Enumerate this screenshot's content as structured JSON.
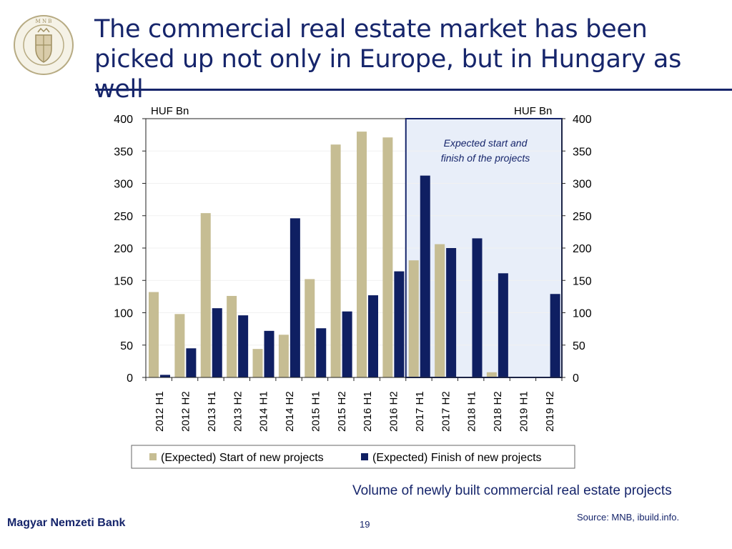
{
  "slide": {
    "title": "The commercial real estate market has been picked up not only in Europe, but in Hungary as well",
    "caption": "Volume of newly built commercial real estate projects",
    "source": "Source: MNB, ibuild.info.",
    "footer_bank": "Magyar Nemzeti Bank",
    "page_number": "19",
    "logo_text": "MAGYAR NEMZETI BANK"
  },
  "colors": {
    "navy": "#16256b",
    "start_bar": "#c6bd93",
    "finish_bar": "#0f1f62",
    "expected_band": "#e8eef9",
    "axis": "#222222"
  },
  "chart_data": {
    "type": "bar",
    "categories": [
      "2012 H1",
      "2012 H2",
      "2013 H1",
      "2013 H2",
      "2014 H1",
      "2014 H2",
      "2015 H1",
      "2015 H2",
      "2016 H1",
      "2016 H2",
      "2017 H1",
      "2017 H2",
      "2018 H1",
      "2018 H2",
      "2019 H1",
      "2019 H2"
    ],
    "series": [
      {
        "name": "(Expected) Start of new projects",
        "values": [
          132,
          98,
          254,
          126,
          44,
          66,
          152,
          360,
          380,
          371,
          181,
          206,
          1,
          8,
          0,
          0
        ]
      },
      {
        "name": "(Expected) Finish of new projects",
        "values": [
          4,
          45,
          107,
          96,
          72,
          246,
          76,
          102,
          127,
          164,
          312,
          200,
          215,
          161,
          0,
          129
        ]
      }
    ],
    "ylim": [
      0,
      400
    ],
    "yticks": [
      0,
      50,
      100,
      150,
      200,
      250,
      300,
      350,
      400
    ],
    "y_unit_left": "HUF Bn",
    "y_unit_right": "HUF Bn",
    "grid": true,
    "legend": "bottom-center",
    "highlight_from_category": "2017 H1",
    "annotation": "Expected start and finish of the projects"
  }
}
